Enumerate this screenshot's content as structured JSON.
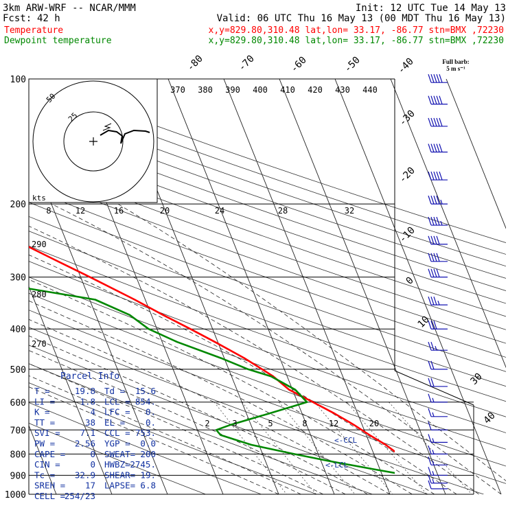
{
  "header": {
    "model": "3km ARW-WRF -- NCAR/MMM",
    "init": "Init: 12 UTC Tue 14 May 13",
    "fcst_label": "Fcst:",
    "fcst_value": "42 h",
    "valid": "Valid: 06 UTC Thu 16 May 13 (00 MDT Thu 16 May 13)",
    "temperature_label": "Temperature",
    "temperature_loc": "x,y=829.80,310.48   lat,lon= 33.17, -86.77   stn=BMX ,72230",
    "dewpoint_label": "Dewpoint temperature",
    "dewpoint_loc": "x,y=829.80,310.48   lat,lon= 33.17, -86.77   stn=BMX ,72230"
  },
  "colors": {
    "temperature": "#ff0000",
    "dewpoint": "#008800",
    "parcel_info": "#1030a0",
    "wind_barbs": "#1010b0",
    "grid": "#000000"
  },
  "parcel_info": {
    "title": "Parcel Info",
    "rows": [
      [
        "T  =",
        "19.8",
        "Td =",
        "15.6"
      ],
      [
        "LI =",
        "1.8",
        "LCL =",
        "854."
      ],
      [
        "K  =",
        "4",
        "LFC =",
        "0."
      ],
      [
        "TT =",
        "38",
        "EL  =",
        "0."
      ],
      [
        "SVI =",
        "7.1",
        "CCL =",
        "753."
      ],
      [
        "PW =",
        "2.56",
        "YGP =",
        "0.0"
      ],
      [
        "CAPE =",
        "0",
        "SWEAT=",
        "200"
      ],
      [
        "CIN =",
        "0",
        "HWBZ=",
        "2745."
      ],
      [
        "Tc =",
        "32.9",
        "SHEAR=",
        "19."
      ],
      [
        "SREH =",
        "17",
        "LAPSE=",
        "6.8"
      ],
      [
        "CELL =",
        "254/23",
        "",
        ""
      ]
    ]
  },
  "wind_legend": {
    "line1": "Full barb:",
    "line2": "5 m s⁻¹"
  },
  "hodograph": {
    "ring_labels": [
      "25",
      "50"
    ],
    "units": "kts"
  },
  "markers": {
    "ccl": "<-CCL",
    "lcl": "<-LCL"
  },
  "chart_data": {
    "type": "line",
    "title": "",
    "y_axis": "pressure (hPa), log scale, inverted",
    "ylim": [
      1000,
      100
    ],
    "pressure_tick_labels": [
      "100",
      "200",
      "300",
      "400",
      "500",
      "600",
      "700",
      "800",
      "900",
      "1000"
    ],
    "isotherm_labels": [
      {
        "text": "-80",
        "T": -80
      },
      {
        "text": "-70",
        "T": -70
      },
      {
        "text": "-60",
        "T": -60
      },
      {
        "text": "-50",
        "T": -50
      },
      {
        "text": "-40",
        "T": -40
      },
      {
        "text": "-30",
        "T": -30
      },
      {
        "text": "-20",
        "T": -20
      },
      {
        "text": "-10",
        "T": -10
      },
      {
        "text": "0",
        "T": 0
      },
      {
        "text": "10",
        "T": 10
      },
      {
        "text": "30",
        "T": 30
      },
      {
        "text": "40",
        "T": 40
      }
    ],
    "theta_e_labels": [
      "370",
      "380",
      "390",
      "400",
      "410",
      "420",
      "430",
      "440"
    ],
    "mixing_ratio_labels_upper": [
      "8",
      "12",
      "16",
      "20",
      "24",
      "28",
      "32"
    ],
    "mixing_ratio_labels_lower": [
      "2",
      "3",
      "5",
      "8",
      "12",
      "20"
    ],
    "dry_adiabat_labels": [
      "290",
      "280",
      "270"
    ],
    "series": [
      {
        "name": "Temperature",
        "p": [
          985,
          960,
          930,
          900,
          870,
          830,
          800,
          760,
          720,
          680,
          640,
          600,
          560,
          520,
          500,
          470,
          430,
          400,
          370,
          340,
          300,
          270,
          245,
          220,
          200,
          180,
          160,
          145,
          130,
          118,
          108,
          100
        ],
        "T": [
          21.7,
          22.6,
          21.3,
          18.5,
          16.5,
          15.2,
          14.4,
          12.8,
          10.6,
          8.5,
          5.9,
          2.8,
          -0.6,
          -2.5,
          -4.0,
          -6.4,
          -10.5,
          -14.0,
          -17.9,
          -21.9,
          -28.3,
          -33.9,
          -39.0,
          -45.0,
          -49.0,
          -53.0,
          -54.9,
          -54.8,
          -55.8,
          -58.0,
          -58.8,
          -56.0
        ]
      },
      {
        "name": "Dewpoint temperature",
        "p": [
          985,
          960,
          930,
          900,
          870,
          830,
          800,
          760,
          720,
          700,
          680,
          640,
          600,
          560,
          520,
          500,
          470,
          430,
          400,
          370,
          340,
          320,
          300,
          280,
          265,
          245,
          220,
          200,
          180,
          160,
          140,
          130,
          118,
          108,
          100
        ],
        "T": [
          16.8,
          17.8,
          18.1,
          14.6,
          8.8,
          1.1,
          -4.3,
          -11.4,
          -16.2,
          -16.6,
          -13.6,
          -6.1,
          1.7,
          0.5,
          -2.9,
          -6.5,
          -10.6,
          -17.3,
          -21.5,
          -23.9,
          -29.0,
          -40.0,
          -50.0,
          -58.0,
          -62.0,
          -58.3,
          -54.8,
          -57.5,
          -63.2,
          -71.8,
          -83.1,
          -88.8,
          -91.0,
          -92.6,
          -91.0
        ]
      }
    ],
    "wind_profile": {
      "speed_unit": "m/s",
      "levels": [
        {
          "p": 970,
          "spd": 6,
          "dir": 190
        },
        {
          "p": 940,
          "spd": 8,
          "dir": 200
        },
        {
          "p": 900,
          "spd": 8,
          "dir": 210
        },
        {
          "p": 850,
          "spd": 8,
          "dir": 220
        },
        {
          "p": 800,
          "spd": 7,
          "dir": 230
        },
        {
          "p": 750,
          "spd": 7,
          "dir": 240
        },
        {
          "p": 700,
          "spd": 6,
          "dir": 250
        },
        {
          "p": 650,
          "spd": 7,
          "dir": 260
        },
        {
          "p": 600,
          "spd": 8,
          "dir": 265
        },
        {
          "p": 550,
          "spd": 9,
          "dir": 270
        },
        {
          "p": 500,
          "spd": 10,
          "dir": 270
        },
        {
          "p": 450,
          "spd": 12,
          "dir": 275
        },
        {
          "p": 400,
          "spd": 14,
          "dir": 275
        },
        {
          "p": 350,
          "spd": 17,
          "dir": 280
        },
        {
          "p": 300,
          "spd": 19,
          "dir": 285
        },
        {
          "p": 275,
          "spd": 20,
          "dir": 285
        },
        {
          "p": 250,
          "spd": 21,
          "dir": 290
        },
        {
          "p": 225,
          "spd": 22,
          "dir": 290
        },
        {
          "p": 200,
          "spd": 22,
          "dir": 290
        },
        {
          "p": 175,
          "spd": 24,
          "dir": 290
        },
        {
          "p": 150,
          "spd": 25,
          "dir": 295
        },
        {
          "p": 130,
          "spd": 25,
          "dir": 295
        },
        {
          "p": 115,
          "spd": 26,
          "dir": 295
        },
        {
          "p": 102,
          "spd": 25,
          "dir": 295
        }
      ]
    }
  }
}
